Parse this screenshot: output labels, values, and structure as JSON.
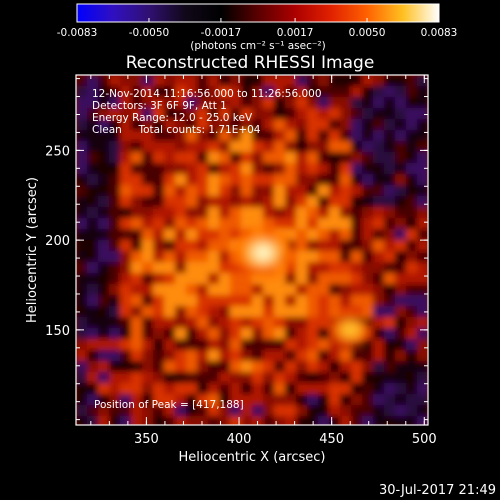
{
  "chart_data": {
    "type": "heatmap",
    "title": "Reconstructed RHESSI Image",
    "xlabel": "Heliocentric X (arcsec)",
    "ylabel": "Heliocentric Y (arcsec)",
    "xlim": [
      312,
      502
    ],
    "ylim": [
      97,
      292
    ],
    "xticks": [
      350,
      400,
      450,
      500
    ],
    "yticks": [
      150,
      200,
      250
    ],
    "colorbar": {
      "label": "(photons cm⁻² s⁻¹ asec⁻²)",
      "range": [
        -0.0083,
        0.0083
      ],
      "ticks": [
        "-0.0083",
        "-0.0050",
        "-0.0017",
        "0.0017",
        "0.0050",
        "0.0083"
      ],
      "colors": [
        "#0000ff",
        "#3010c0",
        "#301070",
        "#100818",
        "#000000",
        "#5a0000",
        "#aa0000",
        "#e02000",
        "#ff6000",
        "#ffc020",
        "#ffffff"
      ]
    },
    "annotations": [
      "12-Nov-2014 11:16:56.000 to 11:26:56.000",
      "Detectors: 3F 6F 9F, Att 1",
      "Energy Range: 12.0 - 25.0 keV",
      "Clean     Total counts: 1.71E+04"
    ],
    "peak_label": "Position of Peak = [417,188]",
    "sources": [
      {
        "x": 413,
        "y": 193,
        "value": 0.0083
      },
      {
        "x": 460,
        "y": 150,
        "value": 0.0055
      }
    ]
  },
  "footer": {
    "timestamp": "30-Jul-2017 21:49"
  }
}
